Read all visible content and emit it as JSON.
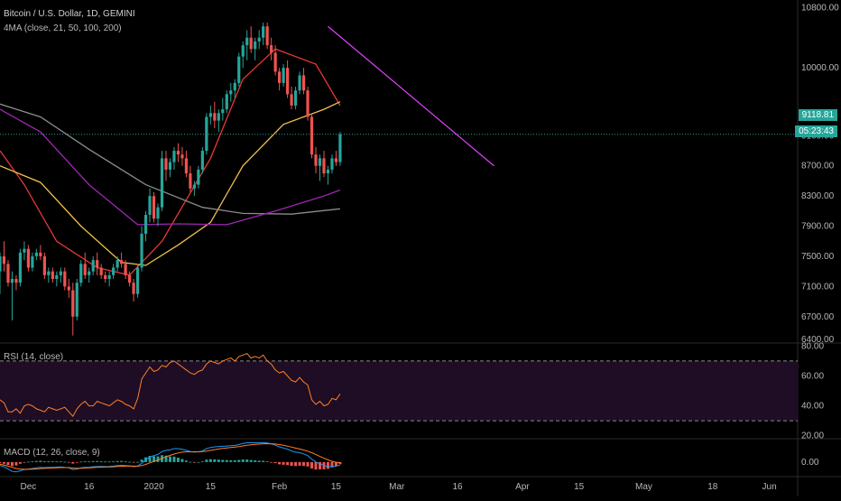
{
  "header": {
    "title": "Bitcoin / U.S. Dollar, 1D, GEMINI",
    "study_ma": "4MA (close, 21, 50, 100, 200)",
    "study_rsi": "RSI (14, close)",
    "study_macd": "MACD (12, 26, close, 9)"
  },
  "price_tags": {
    "last_price": "9118.81",
    "countdown": "05:23:43",
    "last_price_color": "#26a69a"
  },
  "colors": {
    "background": "#000000",
    "up": "#26a69a",
    "down": "#ef5350",
    "ma21": "#e53935",
    "ma50": "#f0c14b",
    "ma100": "#8c8c8c",
    "ma200": "#9c27b0",
    "trendline": "#e040fb",
    "rsi_line": "#ff7f27",
    "rsi_band": "#1e0d24",
    "macd_line": "#2196f3",
    "signal_line": "#ff7f27"
  },
  "chart_data": [
    {
      "type": "candlestick",
      "title": "Bitcoin / U.S. Dollar, 1D, GEMINI",
      "ylim": [
        6350,
        10900
      ],
      "y_ticks": [
        "10800.00",
        "10000.00",
        "9100.00",
        "8700.00",
        "8300.00",
        "7900.00",
        "7500.00",
        "7100.00",
        "6700.00",
        "6400.00"
      ],
      "x_ticks": [
        "Dec",
        "16",
        "2020",
        "15",
        "Feb",
        "15",
        "Mar",
        "16",
        "Apr",
        "15",
        "May",
        "18",
        "Jun"
      ],
      "x_range": [
        "2019-11-24",
        "2020-06-08"
      ],
      "ohlc_start_date": "2019-11-24",
      "ohlc": [
        [
          7300,
          7550,
          7000,
          7500
        ],
        [
          7500,
          7700,
          7300,
          7400
        ],
        [
          7400,
          7450,
          7100,
          7150
        ],
        [
          7150,
          7300,
          6650,
          7200
        ],
        [
          7200,
          7250,
          7050,
          7150
        ],
        [
          7150,
          7600,
          7100,
          7550
        ],
        [
          7550,
          7700,
          7450,
          7600
        ],
        [
          7600,
          7650,
          7300,
          7350
        ],
        [
          7350,
          7550,
          7300,
          7500
        ],
        [
          7500,
          7600,
          7450,
          7550
        ],
        [
          7550,
          7650,
          7450,
          7500
        ],
        [
          7500,
          7550,
          7200,
          7250
        ],
        [
          7250,
          7350,
          7150,
          7300
        ],
        [
          7300,
          7350,
          7150,
          7200
        ],
        [
          7200,
          7300,
          7100,
          7250
        ],
        [
          7250,
          7350,
          7150,
          7300
        ],
        [
          7300,
          7350,
          7050,
          7100
        ],
        [
          7100,
          7200,
          6950,
          7050
        ],
        [
          7050,
          7150,
          6450,
          6700
        ],
        [
          6700,
          7200,
          6650,
          7150
        ],
        [
          7150,
          7450,
          7100,
          7400
        ],
        [
          7400,
          7550,
          7200,
          7250
        ],
        [
          7250,
          7350,
          7150,
          7300
        ],
        [
          7300,
          7500,
          7250,
          7450
        ],
        [
          7450,
          7550,
          7250,
          7350
        ],
        [
          7350,
          7400,
          7200,
          7250
        ],
        [
          7250,
          7300,
          7150,
          7200
        ],
        [
          7200,
          7300,
          7100,
          7250
        ],
        [
          7250,
          7400,
          7200,
          7350
        ],
        [
          7350,
          7500,
          7300,
          7450
        ],
        [
          7450,
          7550,
          7350,
          7400
        ],
        [
          7400,
          7450,
          7200,
          7250
        ],
        [
          7250,
          7300,
          7100,
          7150
        ],
        [
          7150,
          7200,
          6900,
          7000
        ],
        [
          7000,
          7400,
          6950,
          7350
        ],
        [
          7350,
          7900,
          7300,
          7800
        ],
        [
          7800,
          8100,
          7700,
          8050
        ],
        [
          8050,
          8400,
          7950,
          8300
        ],
        [
          8300,
          8350,
          7950,
          8000
        ],
        [
          8000,
          8200,
          7900,
          8150
        ],
        [
          8150,
          8900,
          8100,
          8800
        ],
        [
          8800,
          8900,
          8500,
          8650
        ],
        [
          8650,
          8800,
          8550,
          8750
        ],
        [
          8750,
          8950,
          8650,
          8900
        ],
        [
          8900,
          9000,
          8750,
          8850
        ],
        [
          8850,
          8950,
          8700,
          8800
        ],
        [
          8800,
          8900,
          8550,
          8600
        ],
        [
          8600,
          8700,
          8350,
          8400
        ],
        [
          8400,
          8500,
          8300,
          8450
        ],
        [
          8450,
          8700,
          8400,
          8650
        ],
        [
          8650,
          8950,
          8600,
          8900
        ],
        [
          8900,
          9400,
          8850,
          9350
        ],
        [
          9350,
          9500,
          9250,
          9400
        ],
        [
          9400,
          9550,
          9200,
          9300
        ],
        [
          9300,
          9450,
          9150,
          9400
        ],
        [
          9400,
          9600,
          9300,
          9450
        ],
        [
          9450,
          9700,
          9400,
          9650
        ],
        [
          9650,
          9800,
          9550,
          9700
        ],
        [
          9700,
          9850,
          9600,
          9800
        ],
        [
          9800,
          10200,
          9750,
          10150
        ],
        [
          10150,
          10350,
          10000,
          10300
        ],
        [
          10300,
          10500,
          10100,
          10400
        ],
        [
          10400,
          10550,
          10200,
          10250
        ],
        [
          10250,
          10400,
          10100,
          10350
        ],
        [
          10350,
          10500,
          10250,
          10400
        ],
        [
          10400,
          10600,
          10300,
          10550
        ],
        [
          10550,
          10600,
          10250,
          10300
        ],
        [
          10300,
          10400,
          10100,
          10200
        ],
        [
          10200,
          10300,
          9900,
          9950
        ],
        [
          9950,
          10000,
          9700,
          9800
        ],
        [
          9800,
          10050,
          9750,
          10000
        ],
        [
          10000,
          10100,
          9600,
          9650
        ],
        [
          9650,
          9750,
          9450,
          9500
        ],
        [
          9500,
          9750,
          9450,
          9700
        ],
        [
          9700,
          9950,
          9650,
          9900
        ],
        [
          9900,
          10000,
          9650,
          9700
        ],
        [
          9700,
          9750,
          9300,
          9350
        ],
        [
          9350,
          9400,
          8800,
          8850
        ],
        [
          8850,
          8950,
          8600,
          8700
        ],
        [
          8700,
          8850,
          8500,
          8800
        ],
        [
          8800,
          8900,
          8550,
          8600
        ],
        [
          8600,
          8700,
          8450,
          8650
        ],
        [
          8650,
          8850,
          8600,
          8800
        ],
        [
          8800,
          8900,
          8700,
          8750
        ],
        [
          8750,
          9150,
          8700,
          9118
        ]
      ],
      "moving_averages": {
        "ma21": [
          [
            0,
            8900
          ],
          [
            6,
            8450
          ],
          [
            14,
            7700
          ],
          [
            24,
            7350
          ],
          [
            32,
            7250
          ],
          [
            40,
            7700
          ],
          [
            52,
            8800
          ],
          [
            60,
            9850
          ],
          [
            68,
            10250
          ],
          [
            78,
            10050
          ],
          [
            84,
            9500
          ]
        ],
        "ma50": [
          [
            0,
            8700
          ],
          [
            10,
            8480
          ],
          [
            20,
            7900
          ],
          [
            30,
            7420
          ],
          [
            36,
            7380
          ],
          [
            44,
            7650
          ],
          [
            52,
            7950
          ],
          [
            60,
            8700
          ],
          [
            70,
            9250
          ],
          [
            80,
            9450
          ],
          [
            84,
            9550
          ]
        ],
        "ma100": [
          [
            0,
            9520
          ],
          [
            10,
            9350
          ],
          [
            22,
            8920
          ],
          [
            36,
            8450
          ],
          [
            50,
            8150
          ],
          [
            60,
            8070
          ],
          [
            72,
            8060
          ],
          [
            84,
            8130
          ]
        ],
        "ma200": [
          [
            0,
            9450
          ],
          [
            10,
            9150
          ],
          [
            22,
            8450
          ],
          [
            34,
            7920
          ],
          [
            44,
            7930
          ],
          [
            56,
            7920
          ],
          [
            68,
            8100
          ],
          [
            80,
            8300
          ],
          [
            84,
            8380
          ]
        ]
      },
      "trendline": [
        [
          "2020-02-13",
          10550
        ],
        [
          "2020-03-25",
          8700
        ]
      ],
      "last_price": 9118.81
    },
    {
      "type": "line",
      "title": "RSI (14, close)",
      "ylim": [
        18,
        82
      ],
      "y_ticks": [
        "80.00",
        "60.00",
        "40.00",
        "20.00"
      ],
      "bands": [
        30,
        70
      ],
      "values": [
        44,
        42,
        36,
        36,
        38,
        35,
        40,
        41,
        40,
        38,
        37,
        36,
        39,
        38,
        37,
        38,
        39,
        36,
        33,
        38,
        41,
        43,
        40,
        40,
        43,
        42,
        41,
        40,
        42,
        44,
        43,
        41,
        40,
        38,
        45,
        58,
        62,
        66,
        63,
        64,
        67,
        66,
        69,
        70,
        68,
        66,
        64,
        62,
        61,
        63,
        64,
        68,
        70,
        69,
        68,
        70,
        71,
        72,
        70,
        73,
        74,
        75,
        72,
        73,
        72,
        74,
        70,
        68,
        64,
        62,
        63,
        60,
        57,
        56,
        59,
        56,
        54,
        44,
        41,
        43,
        40,
        41,
        45,
        44,
        48
      ]
    },
    {
      "type": "bar",
      "title": "MACD (12, 26, close, 9)",
      "ylim": [
        -250,
        400
      ],
      "y_ticks": [
        "0.00"
      ],
      "macd": [
        -60,
        -80,
        -120,
        -160,
        -170,
        -150,
        -130,
        -120,
        -110,
        -100,
        -90,
        -95,
        -90,
        -92,
        -88,
        -85,
        -90,
        -100,
        -130,
        -120,
        -100,
        -90,
        -90,
        -80,
        -75,
        -75,
        -78,
        -76,
        -70,
        -60,
        -55,
        -60,
        -65,
        -80,
        -70,
        -20,
        40,
        90,
        110,
        130,
        180,
        200,
        210,
        230,
        230,
        220,
        200,
        180,
        170,
        175,
        190,
        230,
        250,
        260,
        265,
        270,
        275,
        280,
        285,
        300,
        320,
        330,
        330,
        330,
        330,
        335,
        325,
        310,
        290,
        260,
        240,
        220,
        190,
        170,
        160,
        140,
        110,
        50,
        0,
        -30,
        -60,
        -80,
        -80,
        -70,
        -50
      ],
      "signal": [
        -40,
        -50,
        -70,
        -90,
        -110,
        -120,
        -125,
        -125,
        -122,
        -118,
        -112,
        -109,
        -105,
        -102,
        -99,
        -96,
        -95,
        -96,
        -103,
        -107,
        -106,
        -103,
        -100,
        -96,
        -92,
        -88,
        -86,
        -84,
        -81,
        -77,
        -73,
        -70,
        -69,
        -71,
        -71,
        -61,
        -41,
        -15,
        10,
        34,
        63,
        90,
        114,
        137,
        156,
        169,
        175,
        176,
        175,
        175,
        178,
        188,
        201,
        213,
        223,
        233,
        241,
        249,
        256,
        265,
        276,
        287,
        295,
        302,
        307,
        313,
        315,
        314,
        309,
        299,
        287,
        273,
        256,
        239,
        223,
        207,
        187,
        160,
        128,
        96,
        65,
        36,
        13,
        -4,
        -13
      ]
    }
  ]
}
